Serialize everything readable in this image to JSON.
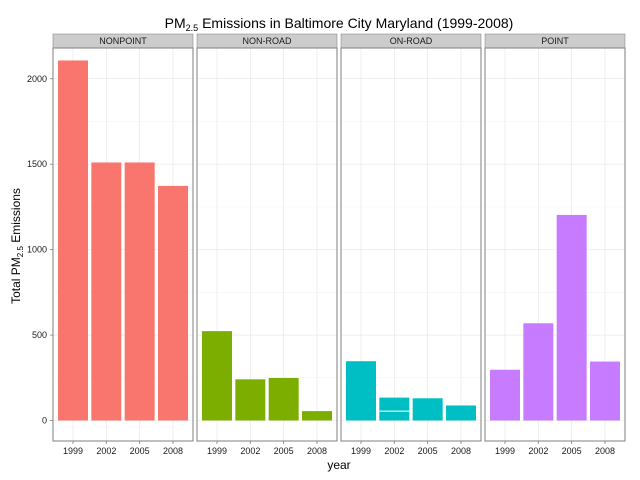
{
  "chart_data": {
    "type": "bar",
    "title": {
      "prefix": "PM",
      "sub": "2.5",
      "suffix": " Emissions in Baltimore City Maryland (1999-2008)"
    },
    "xlabel": "year",
    "ylabel": {
      "prefix": "Total PM",
      "sub": "2.5",
      "suffix": " Emissions"
    },
    "categories": [
      "1999",
      "2002",
      "2005",
      "2008"
    ],
    "ylim": [
      -120,
      2180
    ],
    "yticks": [
      0,
      500,
      1000,
      1500,
      2000
    ],
    "ytick_labels": [
      "0",
      "500",
      "1000",
      "1500",
      "2000"
    ],
    "grid": true,
    "facets": [
      {
        "name": "NONPOINT",
        "color": "#F8766D",
        "values": [
          2107,
          1510,
          1510,
          1373
        ]
      },
      {
        "name": "NON-ROAD",
        "color": "#7CAE00",
        "values": [
          523,
          241,
          249,
          55
        ]
      },
      {
        "name": "ON-ROAD",
        "color": "#00BFC4",
        "values": [
          347,
          134,
          130,
          88
        ]
      },
      {
        "name": "POINT",
        "color": "#C77CFF",
        "values": [
          297,
          569,
          1203,
          345
        ]
      }
    ],
    "stacked_segments": {
      "ON-ROAD": {
        "2002": [
          55,
          79
        ]
      }
    }
  }
}
